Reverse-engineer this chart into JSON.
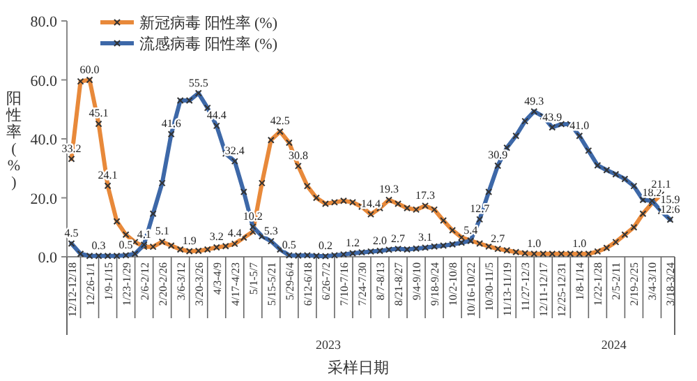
{
  "chart_data": {
    "type": "line",
    "ylabel": "阳性率(%)",
    "xlabel": "采样日期",
    "categories": [
      "12/12-12/18",
      null,
      "12/26-1/1",
      null,
      "1/9-1/15",
      null,
      "1/23-1/29",
      null,
      "2/6-2/12",
      null,
      "2/20-2/26",
      null,
      "3/6-3/12",
      null,
      "3/20-3/26",
      null,
      "4/3-4/9",
      null,
      "4/17-4/23",
      null,
      "5/1-5/7",
      null,
      "5/15-5/21",
      null,
      "5/29-6/4",
      null,
      "6/12-6/18",
      null,
      "6/26-7/2",
      null,
      "7/10-7/16",
      null,
      "7/24-7/30",
      null,
      "8/7-8/13",
      null,
      "8/21-8/27",
      null,
      "9/4-9/10",
      null,
      "9/18-9/24",
      null,
      "10/2-10/8",
      null,
      "10/16-10/22",
      null,
      "10/30-11/5",
      null,
      "11/13-11/19",
      null,
      "11/27-12/3",
      null,
      "12/11-12/17",
      null,
      "12/25-12/31",
      null,
      "1/8-1/14",
      null,
      "1/22-1/28",
      null,
      "2/5-2/11",
      null,
      "2/19-2/25",
      null,
      "3/4-3/10",
      null,
      "3/18-3/24"
    ],
    "series": [
      {
        "name": "新冠病毒 阳性率 (%)",
        "color": "#e8893a",
        "values": [
          33.2,
          59.5,
          60.0,
          45.1,
          24.1,
          12,
          7.5,
          5,
          3.4,
          3.4,
          5.1,
          3.8,
          2.5,
          1.9,
          2.0,
          2.5,
          3.2,
          3.6,
          4.4,
          6.5,
          8.5,
          25,
          39.6,
          42.5,
          38.7,
          30.8,
          24,
          20,
          18,
          18.5,
          19,
          18.5,
          17,
          14.4,
          16.5,
          19.3,
          18,
          16.5,
          16,
          17.3,
          16,
          12.3,
          9,
          6.6,
          5.5,
          4.5,
          3.5,
          2.7,
          2.2,
          1.6,
          1.2,
          1.0,
          1.0,
          1.0,
          1.0,
          1.0,
          1.0,
          1.0,
          1.8,
          3,
          5,
          7.5,
          10,
          14.6,
          18.2,
          21.1,
          15.9
        ],
        "value_labels": [
          "33.2",
          null,
          "60.0",
          "45.1",
          "24.1",
          null,
          null,
          null,
          null,
          null,
          "5.1",
          null,
          null,
          "1.9",
          null,
          null,
          "3.2",
          null,
          "4.4",
          null,
          null,
          null,
          null,
          "42.5",
          null,
          "30.8",
          null,
          null,
          null,
          null,
          null,
          null,
          null,
          "14.4",
          null,
          "19.3",
          null,
          null,
          null,
          "17.3",
          null,
          null,
          null,
          null,
          null,
          null,
          null,
          "2.7",
          null,
          null,
          null,
          "1.0",
          null,
          null,
          null,
          null,
          "1.0",
          null,
          null,
          null,
          null,
          null,
          null,
          null,
          "18.2",
          "21.1",
          "15.9"
        ]
      },
      {
        "name": "流感病毒 阳性率 (%)",
        "color": "#3d68a8",
        "values": [
          4.5,
          1.0,
          0.3,
          0.3,
          0.3,
          0.3,
          0.5,
          1.0,
          4.1,
          14.6,
          25,
          41.6,
          53,
          53,
          55.5,
          50.5,
          44.4,
          35,
          32.4,
          22,
          10.2,
          7,
          5.3,
          2.5,
          0.5,
          0.4,
          0.5,
          0.3,
          0.2,
          0.5,
          0.8,
          1.2,
          1.5,
          1.8,
          2.0,
          2.4,
          2.7,
          2.5,
          2.8,
          3.1,
          3.5,
          3.8,
          4.2,
          4.8,
          5.4,
          12.7,
          22,
          30.9,
          37,
          41,
          46,
          49.3,
          47.6,
          43.9,
          45,
          45,
          41.0,
          36,
          31,
          29.4,
          28,
          26.4,
          24,
          19.3,
          19.0,
          15.5,
          12.6
        ],
        "value_labels": [
          "4.5",
          null,
          null,
          "0.3",
          null,
          null,
          "0.5",
          null,
          "4.1",
          null,
          null,
          "41.6",
          null,
          null,
          "55.5",
          null,
          "44.4",
          null,
          "32.4",
          null,
          "10.2",
          null,
          "5.3",
          null,
          "0.5",
          null,
          null,
          null,
          "0.2",
          null,
          null,
          "1.2",
          null,
          null,
          "2.0",
          null,
          "2.7",
          null,
          null,
          "3.1",
          null,
          null,
          null,
          null,
          "5.4",
          "12.7",
          null,
          "30.9",
          null,
          null,
          null,
          "49.3",
          null,
          "43.9",
          null,
          null,
          "41.0",
          null,
          null,
          null,
          null,
          null,
          null,
          null,
          null,
          null,
          "12.6"
        ]
      }
    ],
    "ylim": [
      0,
      80
    ],
    "yticks": [
      {
        "value": 0,
        "label": "0.0"
      },
      {
        "value": 20,
        "label": "20.0"
      },
      {
        "value": 40,
        "label": "40.0"
      },
      {
        "value": 60,
        "label": "60.0"
      },
      {
        "value": 80,
        "label": "80.0"
      }
    ],
    "legend": "top left",
    "marker": "cross",
    "line_style": "solid",
    "annotations": [
      "2023",
      "2024"
    ]
  }
}
